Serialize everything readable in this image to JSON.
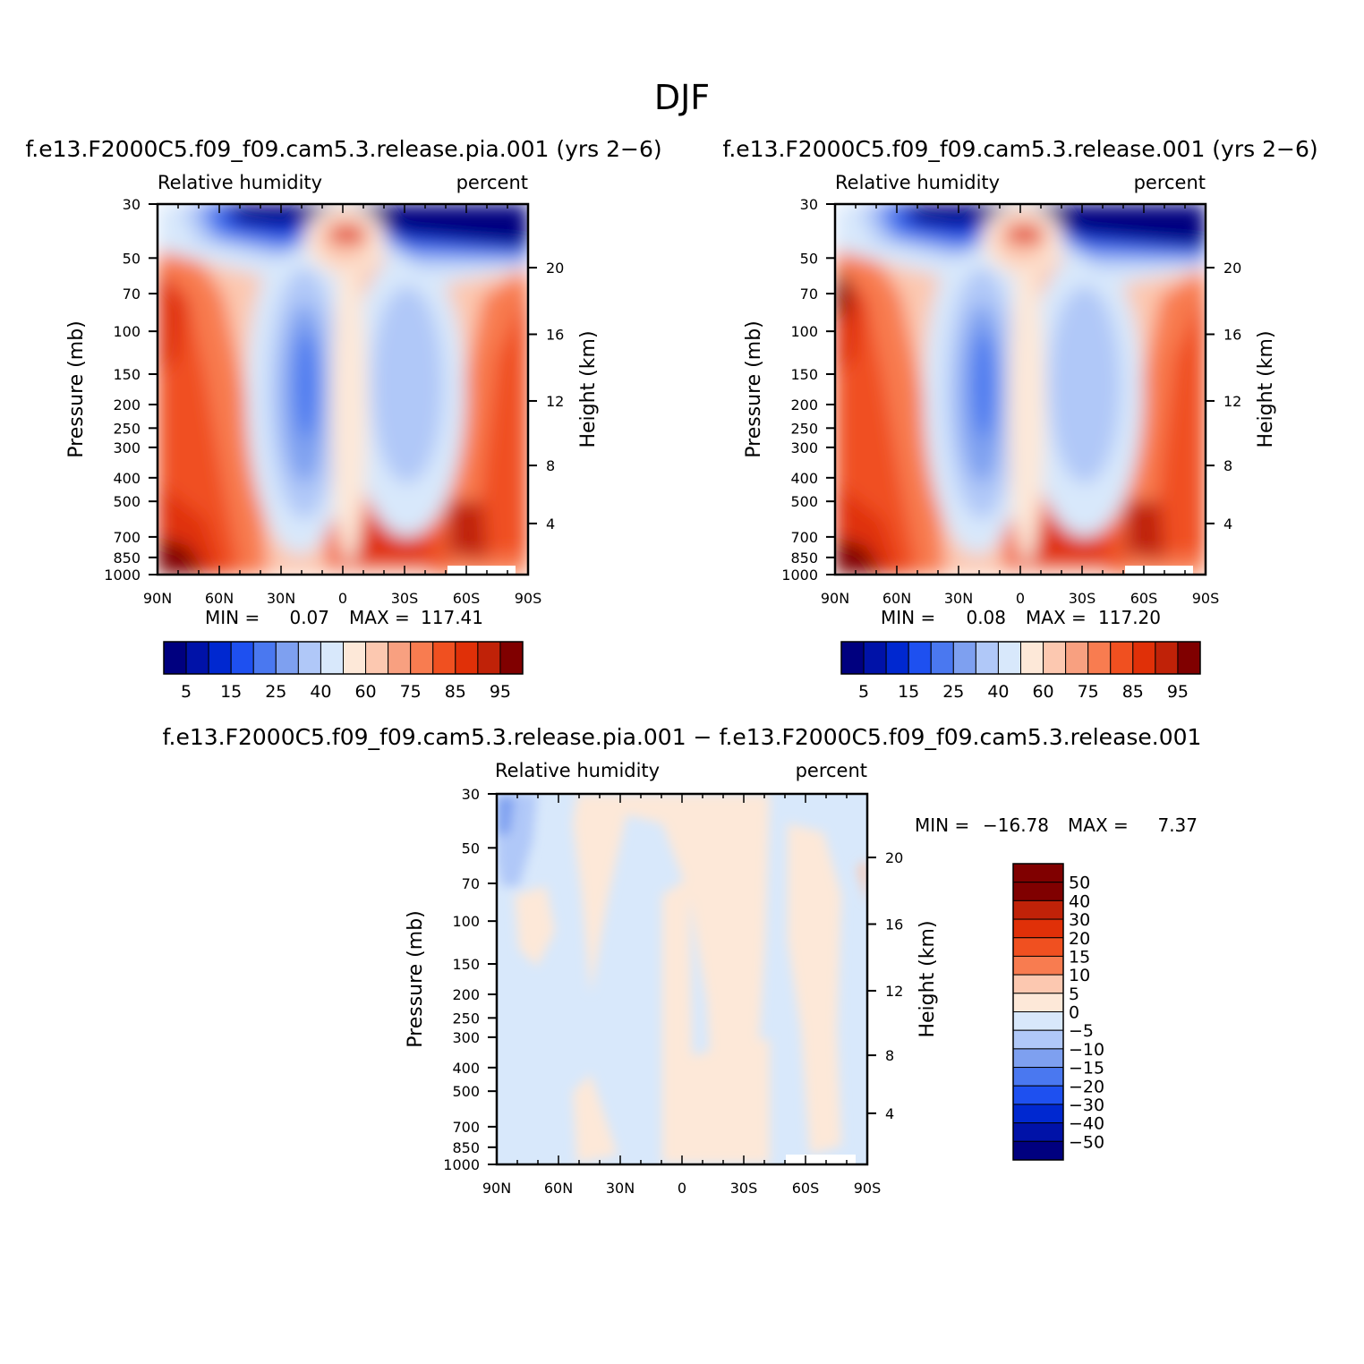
{
  "figure_title": "DJF",
  "panels": [
    {
      "case_title": "f.e13.F2000C5.f09_f09.cam5.3.release.pia.001 (yrs 2−6)",
      "variable": "Relative humidity",
      "units": "percent",
      "ylabel_left": "Pressure (mb)",
      "ylabel_right": "Height (km)",
      "min_label": "MIN =",
      "min_value": "0.07",
      "max_label": "MAX =",
      "max_value": "117.41"
    },
    {
      "case_title": "f.e13.F2000C5.f09_f09.cam5.3.release.001 (yrs 2−6)",
      "variable": "Relative humidity",
      "units": "percent",
      "ylabel_left": "Pressure (mb)",
      "ylabel_right": "Height (km)",
      "min_label": "MIN =",
      "min_value": "0.08",
      "max_label": "MAX =",
      "max_value": "117.20"
    },
    {
      "case_title": "f.e13.F2000C5.f09_f09.cam5.3.release.pia.001 − f.e13.F2000C5.f09_f09.cam5.3.release.001",
      "variable": "Relative humidity",
      "units": "percent",
      "ylabel_left": "Pressure (mb)",
      "ylabel_right": "Height (km)",
      "min_label": "MIN =",
      "min_value": "−16.78",
      "max_label": "MAX =",
      "max_value": "7.37"
    }
  ],
  "chart_data": [
    {
      "type": "heatmap",
      "title": "f.e13.F2000C5.f09_f09.cam5.3.release.pia.001 (yrs 2−6)",
      "x_ticks": [
        "90N",
        "60N",
        "30N",
        "0",
        "30S",
        "60S",
        "90S"
      ],
      "y_ticks_pressure": [
        "30",
        "50",
        "70",
        "100",
        "150",
        "200",
        "250",
        "300",
        "400",
        "500",
        "700",
        "850",
        "1000"
      ],
      "y_ticks_height": [
        "20",
        "16",
        "12",
        "8",
        "4"
      ],
      "xlim": [
        90,
        -90
      ],
      "ylim": [
        1000,
        30
      ],
      "y_scale": "log",
      "colorbar_labels": [
        "5",
        "15",
        "25",
        "40",
        "60",
        "75",
        "85",
        "95"
      ]
    },
    {
      "type": "heatmap",
      "title": "f.e13.F2000C5.f09_f09.cam5.3.release.001 (yrs 2−6)",
      "x_ticks": [
        "90N",
        "60N",
        "30N",
        "0",
        "30S",
        "60S",
        "90S"
      ],
      "y_ticks_pressure": [
        "30",
        "50",
        "70",
        "100",
        "150",
        "200",
        "250",
        "300",
        "400",
        "500",
        "700",
        "850",
        "1000"
      ],
      "y_ticks_height": [
        "20",
        "16",
        "12",
        "8",
        "4"
      ],
      "xlim": [
        90,
        -90
      ],
      "ylim": [
        1000,
        30
      ],
      "y_scale": "log",
      "colorbar_labels": [
        "5",
        "15",
        "25",
        "40",
        "60",
        "75",
        "85",
        "95"
      ]
    },
    {
      "type": "heatmap",
      "title": "f.e13.F2000C5.f09_f09.cam5.3.release.pia.001 − f.e13.F2000C5.f09_f09.cam5.3.release.001",
      "x_ticks": [
        "90N",
        "60N",
        "30N",
        "0",
        "30S",
        "60S",
        "90S"
      ],
      "y_ticks_pressure": [
        "30",
        "50",
        "70",
        "100",
        "150",
        "200",
        "250",
        "300",
        "400",
        "500",
        "700",
        "850",
        "1000"
      ],
      "y_ticks_height": [
        "20",
        "16",
        "12",
        "8",
        "4"
      ],
      "xlim": [
        90,
        -90
      ],
      "ylim": [
        1000,
        30
      ],
      "y_scale": "log",
      "colorbar_labels": [
        "50",
        "40",
        "30",
        "20",
        "15",
        "10",
        "5",
        "0",
        "−5",
        "−10",
        "−15",
        "−20",
        "−30",
        "−40",
        "−50"
      ]
    }
  ],
  "colors": {
    "rh_palette": [
      "#00007f",
      "#0012a8",
      "#0028d0",
      "#1e50f0",
      "#4a78f0",
      "#7ea0f0",
      "#b0c8f8",
      "#d8e8fb",
      "#fde8d8",
      "#fcc8b0",
      "#f8a080",
      "#f87c50",
      "#f05020",
      "#e03008",
      "#c02208",
      "#800000"
    ],
    "diff_palette": [
      "#800000",
      "#c02208",
      "#e03008",
      "#f05020",
      "#f87c50",
      "#fcc8b0",
      "#fde8d8",
      "#d8e8fb",
      "#b0c8f8",
      "#7ea0f0",
      "#4a78f0",
      "#1e50f0",
      "#0028d0",
      "#0012a8",
      "#00007f"
    ]
  }
}
